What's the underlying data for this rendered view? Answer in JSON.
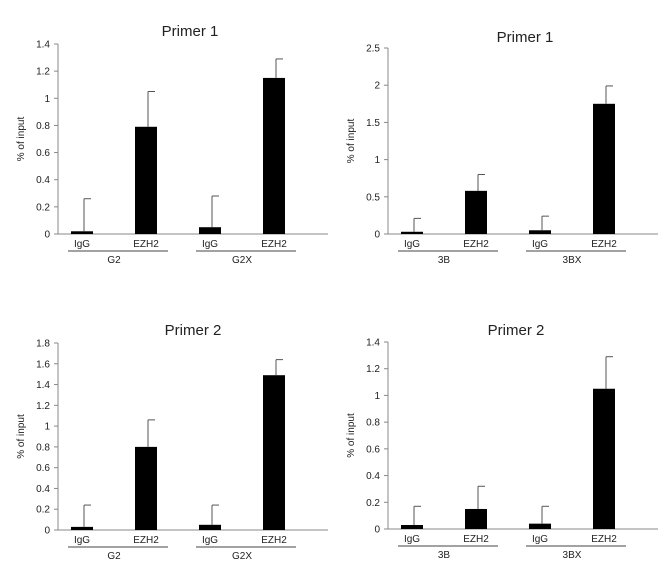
{
  "chart_data": [
    {
      "type": "bar",
      "title": "Primer 1",
      "ylabel": "% of input",
      "ylim": [
        0,
        1.4
      ],
      "yticks": [
        "0",
        "0.2",
        "0.4",
        "0.6",
        "0.8",
        "1",
        "1.2",
        "1.4"
      ],
      "groups": [
        {
          "name": "G2",
          "categories": [
            "IgG",
            "EZH2"
          ],
          "values": [
            0.02,
            0.79
          ],
          "errors": [
            0.24,
            0.26
          ]
        },
        {
          "name": "G2X",
          "categories": [
            "IgG",
            "EZH2"
          ],
          "values": [
            0.05,
            1.15
          ],
          "errors": [
            0.23,
            0.14
          ]
        }
      ],
      "bar_color": "#000000"
    },
    {
      "type": "bar",
      "title": "Primer 1",
      "ylabel": "% of input",
      "ylim": [
        0,
        2.5
      ],
      "yticks": [
        "0",
        "0.5",
        "1",
        "1.5",
        "2",
        "2.5"
      ],
      "groups": [
        {
          "name": "3B",
          "categories": [
            "IgG",
            "EZH2"
          ],
          "values": [
            0.03,
            0.58
          ],
          "errors": [
            0.18,
            0.22
          ]
        },
        {
          "name": "3BX",
          "categories": [
            "IgG",
            "EZH2"
          ],
          "values": [
            0.05,
            1.75
          ],
          "errors": [
            0.19,
            0.24
          ]
        }
      ],
      "bar_color": "#000000"
    },
    {
      "type": "bar",
      "title": "Primer 2",
      "ylabel": "% of input",
      "ylim": [
        0,
        1.8
      ],
      "yticks": [
        "0",
        "0.2",
        "0.4",
        "0.6",
        "0.8",
        "1",
        "1.2",
        "1.4",
        "1.6",
        "1.8"
      ],
      "groups": [
        {
          "name": "G2",
          "categories": [
            "IgG",
            "EZH2"
          ],
          "values": [
            0.03,
            0.8
          ],
          "errors": [
            0.21,
            0.26
          ]
        },
        {
          "name": "G2X",
          "categories": [
            "IgG",
            "EZH2"
          ],
          "values": [
            0.05,
            1.49
          ],
          "errors": [
            0.19,
            0.15
          ]
        }
      ],
      "bar_color": "#000000"
    },
    {
      "type": "bar",
      "title": "Primer 2",
      "ylabel": "% of input",
      "ylim": [
        0,
        1.4
      ],
      "yticks": [
        "0",
        "0.2",
        "0.4",
        "0.6",
        "0.8",
        "1",
        "1.2",
        "1.4"
      ],
      "groups": [
        {
          "name": "3B",
          "categories": [
            "IgG",
            "EZH2"
          ],
          "values": [
            0.03,
            0.15
          ],
          "errors": [
            0.14,
            0.17
          ]
        },
        {
          "name": "3BX",
          "categories": [
            "IgG",
            "EZH2"
          ],
          "values": [
            0.04,
            1.05
          ],
          "errors": [
            0.13,
            0.24
          ]
        }
      ],
      "bar_color": "#000000"
    }
  ]
}
